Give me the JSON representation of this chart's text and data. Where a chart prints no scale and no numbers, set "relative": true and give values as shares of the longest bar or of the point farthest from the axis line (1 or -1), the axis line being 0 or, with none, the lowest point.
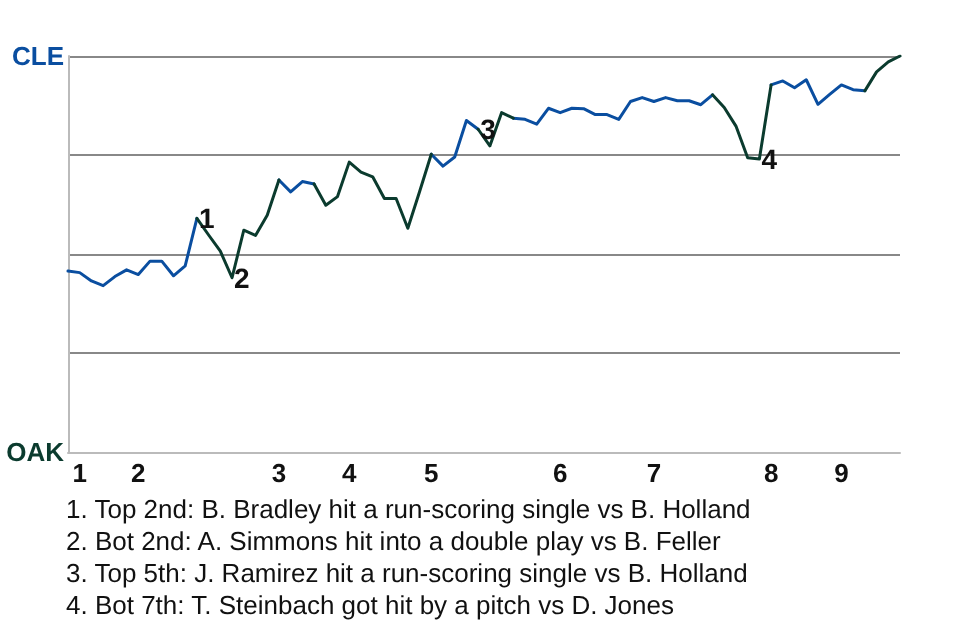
{
  "chart_data": {
    "type": "line",
    "relative": true,
    "categories": [
      null,
      "1",
      null,
      null,
      null,
      null,
      "2",
      null,
      null,
      null,
      null,
      null,
      null,
      null,
      null,
      null,
      null,
      null,
      "3",
      null,
      null,
      null,
      null,
      null,
      "4",
      null,
      null,
      null,
      null,
      null,
      null,
      "5",
      null,
      null,
      null,
      null,
      null,
      null,
      null,
      null,
      null,
      null,
      "6",
      null,
      null,
      null,
      null,
      null,
      null,
      null,
      "7",
      null,
      null,
      null,
      null,
      null,
      null,
      null,
      null,
      null,
      "8",
      null,
      null,
      null,
      null,
      null,
      "9",
      null,
      null,
      null,
      null,
      null
    ],
    "series": [
      {
        "color": "#0a4ea0",
        "values": [
          0.457,
          0.453,
          0.432,
          0.42,
          0.443,
          0.46,
          0.448,
          0.482,
          0.482,
          0.445,
          0.47,
          0.59,
          null,
          null,
          null,
          null,
          null,
          null,
          0.687,
          0.657,
          0.683,
          0.677,
          null,
          null,
          null,
          null,
          null,
          null,
          null,
          null,
          null,
          0.752,
          0.722,
          0.745,
          0.837,
          0.815,
          null,
          null,
          0.843,
          0.84,
          0.828,
          0.868,
          0.857,
          0.868,
          0.867,
          0.852,
          0.852,
          0.84,
          0.885,
          0.895,
          0.885,
          0.895,
          0.887,
          0.887,
          0.877,
          0.902,
          null,
          null,
          null,
          null,
          0.927,
          0.937,
          0.92,
          0.94,
          0.878,
          0.903,
          0.927,
          0.915,
          0.912,
          null,
          null,
          null
        ]
      },
      {
        "color": "#0b3b2e",
        "values": [
          null,
          null,
          null,
          null,
          null,
          null,
          null,
          null,
          null,
          null,
          null,
          0.59,
          0.548,
          0.507,
          0.44,
          0.56,
          0.547,
          0.598,
          0.687,
          null,
          null,
          0.677,
          0.623,
          0.645,
          0.732,
          0.707,
          0.695,
          0.64,
          0.64,
          0.565,
          0.657,
          0.752,
          null,
          null,
          null,
          0.815,
          0.773,
          0.857,
          0.843,
          null,
          null,
          null,
          null,
          null,
          null,
          null,
          null,
          null,
          null,
          null,
          null,
          null,
          null,
          null,
          null,
          0.902,
          0.87,
          0.823,
          0.743,
          0.74,
          0.927,
          null,
          null,
          null,
          null,
          null,
          null,
          null,
          0.912,
          0.96,
          0.985,
          1
        ],
        "line_style": "solid"
      }
    ],
    "grid": "y",
    "annotations": [
      "CLE",
      "OAK",
      {
        "text": "1",
        "y": 0.59
      },
      {
        "text": "2",
        "y": 0.44
      },
      {
        "text": "3",
        "y": 0.815
      },
      {
        "text": "4",
        "y": 0.74
      },
      "1. Top 2nd: B. Bradley hit a run-scoring single vs B. Holland",
      "2. Bot 2nd: A. Simmons hit into a double play vs B. Feller",
      "3. Top 5th: J. Ramirez hit a run-scoring single vs B. Holland",
      "4. Bot 7th: T. Steinbach got hit by a pitch vs D. Jones"
    ]
  }
}
